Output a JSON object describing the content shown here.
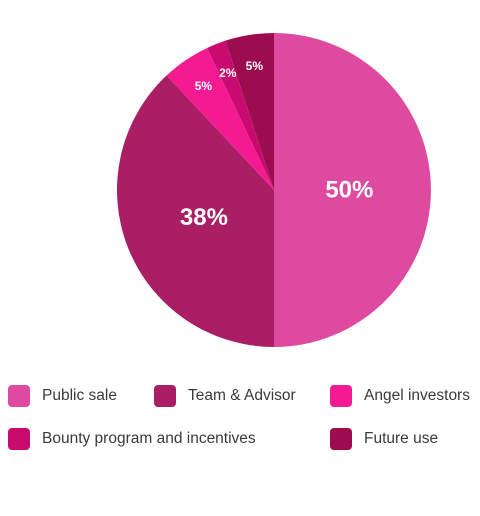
{
  "chart_data": {
    "type": "pie",
    "categories": [
      "Public sale",
      "Team & Advisor",
      "Angel investors",
      "Bounty program and incentives",
      "Future use"
    ],
    "values": [
      50,
      38,
      5,
      2,
      5
    ],
    "labels": [
      "50%",
      "38%",
      "5%",
      "2%",
      "5%"
    ],
    "colors": [
      "#DE4A9F",
      "#A91E65",
      "#F41B92",
      "#C90A6E",
      "#9C0D50"
    ],
    "legend_position": "bottom",
    "slice_order": [
      0,
      1,
      2,
      3,
      4
    ]
  },
  "legend": {
    "items": [
      {
        "label": "Public sale",
        "color": "#DE4A9F"
      },
      {
        "label": "Team & Advisor",
        "color": "#A91E65"
      },
      {
        "label": "Angel investors",
        "color": "#F41B92"
      },
      {
        "label": "Bounty program and incentives",
        "color": "#C90A6E"
      },
      {
        "label": "Future use",
        "color": "#9C0D50"
      }
    ]
  }
}
